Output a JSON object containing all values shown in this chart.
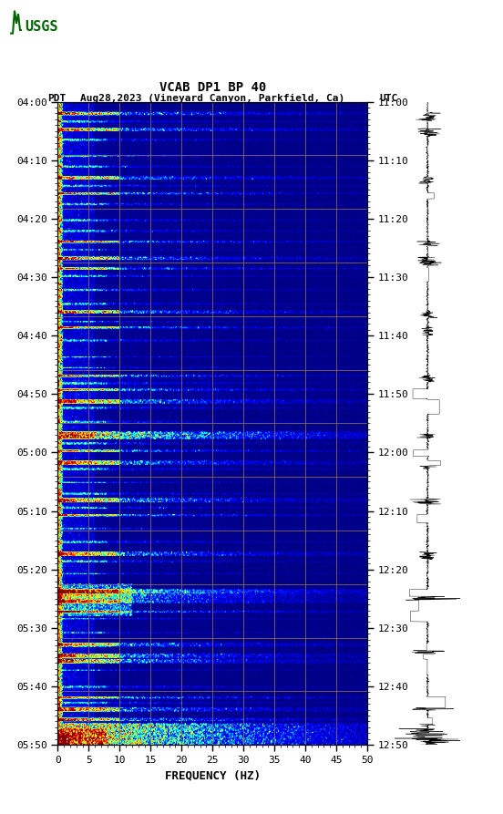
{
  "title_line1": "VCAB DP1 BP 40",
  "title_line2_left": "PDT",
  "title_line2_mid": "Aug28,2023 (Vineyard Canyon, Parkfield, Ca)",
  "title_line2_right": "UTC",
  "xlabel": "FREQUENCY (HZ)",
  "freq_min": 0,
  "freq_max": 50,
  "freq_ticks": [
    0,
    5,
    10,
    15,
    20,
    25,
    30,
    35,
    40,
    45,
    50
  ],
  "left_time_labels": [
    "04:00",
    "04:10",
    "04:20",
    "04:30",
    "04:40",
    "04:50",
    "05:00",
    "05:10",
    "05:20",
    "05:30",
    "05:40",
    "05:50"
  ],
  "right_time_labels": [
    "11:00",
    "11:10",
    "11:20",
    "11:30",
    "11:40",
    "11:50",
    "12:00",
    "12:10",
    "12:20",
    "12:30",
    "12:40",
    "12:50"
  ],
  "n_time_rows": 600,
  "n_freq_cols": 500,
  "background_color": "#ffffff",
  "colormap": "jet",
  "grid_color": "#8B7355",
  "grid_alpha": 0.8,
  "grid_linewidth": 0.7,
  "vertical_grid_freqs": [
    5,
    10,
    15,
    20,
    25,
    30,
    35,
    40,
    45
  ],
  "seismogram_color": "#000000",
  "logo_color": "#006400",
  "title_fontsize": 10,
  "label_fontsize": 9,
  "tick_fontsize": 8,
  "monospace_font": "monospace",
  "vmin": 0.0,
  "vmax": 2.5
}
